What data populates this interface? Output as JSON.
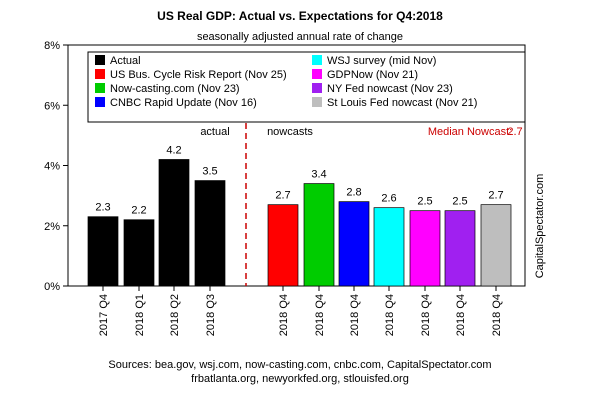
{
  "chart_data": {
    "type": "bar",
    "title": "US Real GDP: Actual vs. Expectations for Q4:2018",
    "subtitle": "seasonally adjusted annual rate of change",
    "xlabel": "",
    "ylabel": "",
    "ylim": [
      0,
      8
    ],
    "yticks": [
      "0%",
      "2%",
      "4%",
      "6%",
      "8%"
    ],
    "ytick_values": [
      0,
      2,
      4,
      6,
      8
    ],
    "grid": false,
    "legend_position": "top",
    "legend": [
      {
        "label": "Actual",
        "color": "#000000"
      },
      {
        "label": "WSJ survey (mid Nov)",
        "color": "#00ffff"
      },
      {
        "label": "US Bus. Cycle Risk Report (Nov 25)",
        "color": "#ff0000"
      },
      {
        "label": "GDPNow (Nov 21)",
        "color": "#ff00ff"
      },
      {
        "label": "Now-casting.com (Nov 23)",
        "color": "#00cc00"
      },
      {
        "label": "NY Fed nowcast (Nov 23)",
        "color": "#a020f0"
      },
      {
        "label": "CNBC Rapid Update (Nov 16)",
        "color": "#0000ff"
      },
      {
        "label": "St Louis Fed nowcast (Nov 21)",
        "color": "#bebebe"
      }
    ],
    "categories": [
      "2017 Q4",
      "2018 Q1",
      "2018 Q2",
      "2018 Q3",
      "2018 Q4",
      "2018 Q4",
      "2018 Q4",
      "2018 Q4",
      "2018 Q4",
      "2018 Q4",
      "2018 Q4"
    ],
    "values": [
      2.3,
      2.2,
      4.2,
      3.5,
      2.7,
      3.4,
      2.8,
      2.6,
      2.5,
      2.5,
      2.7
    ],
    "value_labels": [
      "2.3",
      "2.2",
      "4.2",
      "3.5",
      "2.7",
      "3.4",
      "2.8",
      "2.6",
      "2.5",
      "2.5",
      "2.7"
    ],
    "colors": [
      "#000000",
      "#000000",
      "#000000",
      "#000000",
      "#ff0000",
      "#00cc00",
      "#0000ff",
      "#00ffff",
      "#ff00ff",
      "#a020f0",
      "#bebebe"
    ],
    "groups": {
      "actual_label": "actual",
      "nowcast_label": "nowcasts"
    },
    "annotations": {
      "median_label": "Median Nowcast:",
      "median_value": "2.7",
      "median_color": "#cc0000",
      "divider_color": "#cc0000"
    },
    "watermark": "CapitalSpectator.com",
    "sources": [
      "Sources: bea.gov, wsj.com, now-casting.com, cnbc.com, CapitalSpectator.com",
      "frbatlanta.org, newyorkfed.org, stlouisfed.org"
    ]
  }
}
